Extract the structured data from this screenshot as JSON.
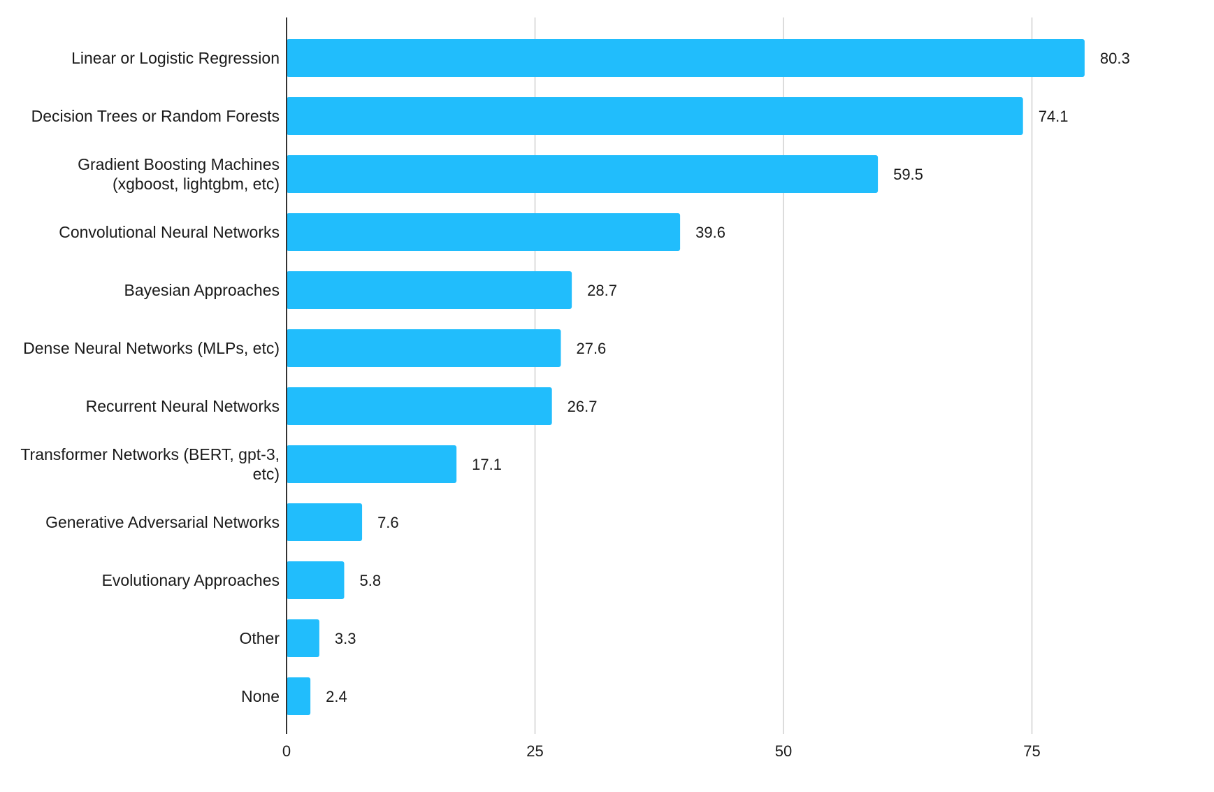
{
  "chart_data": {
    "type": "bar",
    "orientation": "horizontal",
    "categories": [
      "Linear or Logistic Regression",
      "Decision Trees or Random Forests",
      "Gradient Boosting Machines (xgboost, lightgbm, etc)",
      "Convolutional Neural Networks",
      "Bayesian Approaches",
      "Dense Neural Networks (MLPs, etc)",
      "Recurrent Neural Networks",
      "Transformer Networks (BERT, gpt-3, etc)",
      "Generative Adversarial Networks",
      "Evolutionary Approaches",
      "Other",
      "None"
    ],
    "category_lines": [
      [
        "Linear or Logistic Regression"
      ],
      [
        "Decision Trees or Random Forests"
      ],
      [
        "Gradient Boosting Machines",
        "(xgboost, lightgbm, etc)"
      ],
      [
        "Convolutional Neural Networks"
      ],
      [
        "Bayesian Approaches"
      ],
      [
        "Dense Neural Networks (MLPs, etc)"
      ],
      [
        "Recurrent Neural Networks"
      ],
      [
        "Transformer Networks (BERT, gpt-3,",
        "etc)"
      ],
      [
        "Generative Adversarial Networks"
      ],
      [
        "Evolutionary Approaches"
      ],
      [
        "Other"
      ],
      [
        "None"
      ]
    ],
    "values": [
      80.3,
      74.1,
      59.5,
      39.6,
      28.7,
      27.6,
      26.7,
      17.1,
      7.6,
      5.8,
      3.3,
      2.4
    ],
    "value_labels": [
      "80.3",
      "74.1",
      "59.5",
      "39.6",
      "28.7",
      "27.6",
      "26.7",
      "17.1",
      "7.6",
      "5.8",
      "3.3",
      "2.4"
    ],
    "x_ticks": [
      0,
      25,
      50,
      75
    ],
    "x_tick_labels": [
      "0",
      "25",
      "50",
      "75"
    ],
    "xlim": [
      0,
      90
    ],
    "grid": true,
    "legend": "none",
    "title": "",
    "xlabel": "",
    "ylabel": ""
  },
  "colors": {
    "bar": "#21bdfc",
    "grid": "#d0d0d0",
    "axis": "#333333",
    "text": "#1a1a1a"
  }
}
